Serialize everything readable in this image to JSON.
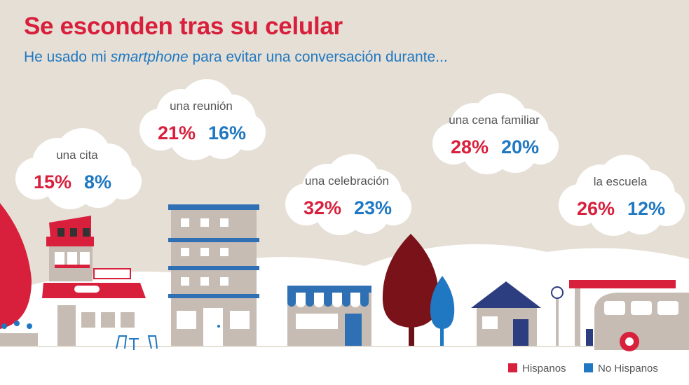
{
  "header": {
    "title": "Se esconden tras su celular",
    "subtitle_before": "He usado mi ",
    "subtitle_em": "smartphone",
    "subtitle_after": " para evitar una conversación durante..."
  },
  "colors": {
    "hispanos": "#d8203c",
    "no_hispanos": "#1f78c1",
    "background": "#e6dfd6",
    "navy": "#2d3e80",
    "dark_red": "#7a1219",
    "building_gray": "#c6bcb4"
  },
  "chart_data": {
    "type": "bar",
    "title": "Se esconden tras su celular",
    "subtitle": "He usado mi smartphone para evitar una conversación durante...",
    "categories": [
      "una cita",
      "una reunión",
      "una celebración",
      "una cena familiar",
      "la escuela"
    ],
    "series": [
      {
        "name": "Hispanos",
        "values": [
          15,
          21,
          32,
          28,
          26
        ]
      },
      {
        "name": "No Hispanos",
        "values": [
          8,
          16,
          23,
          20,
          12
        ]
      }
    ],
    "value_labels_hispanos": [
      "15%",
      "21%",
      "32%",
      "28%",
      "26%"
    ],
    "value_labels_no_hispanos": [
      "8%",
      "16%",
      "23%",
      "20%",
      "12%"
    ],
    "unit": "%",
    "legend_position": "bottom-right",
    "grid": false
  },
  "legend": {
    "items": [
      {
        "label": "Hispanos",
        "color": "#d8203c"
      },
      {
        "label": "No Hispanos",
        "color": "#1f78c1"
      }
    ]
  }
}
